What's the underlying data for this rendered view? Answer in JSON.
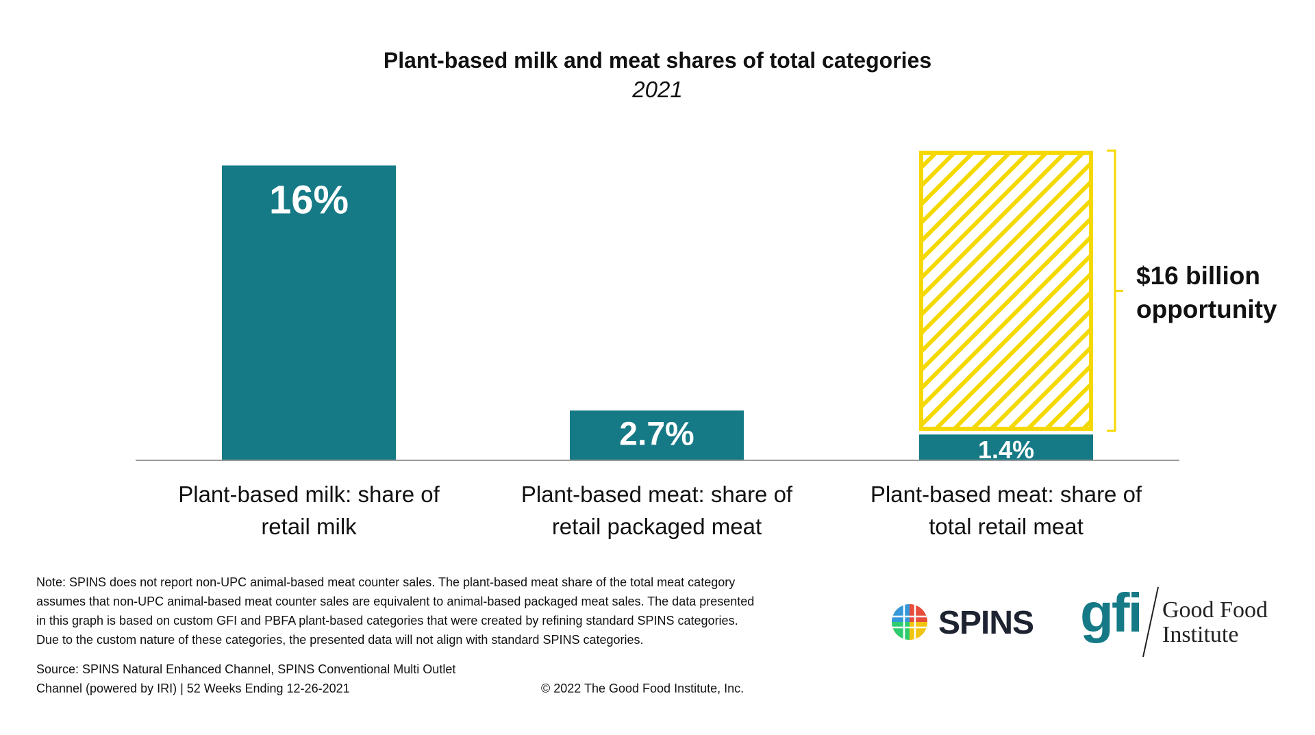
{
  "chart_data": {
    "type": "bar",
    "title": "Plant-based milk and meat shares of total categories",
    "subtitle": "2021",
    "categories": [
      "Plant-based milk: share of retail milk",
      "Plant-based meat: share of retail packaged meat",
      "Plant-based meat: share of total retail meat"
    ],
    "category_lines": [
      [
        "Plant-based milk: share of",
        "retail milk"
      ],
      [
        "Plant-based meat: share of",
        "retail packaged meat"
      ],
      [
        "Plant-based meat: share of",
        "total retail meat"
      ]
    ],
    "values": [
      16,
      2.7,
      1.4
    ],
    "value_labels": [
      "16%",
      "2.7%",
      "1.4%"
    ],
    "unit": "%",
    "ylim": [
      0,
      16.8
    ],
    "grid": false,
    "opportunity": {
      "category_index": 2,
      "from": 1.6,
      "to": 16.8,
      "label_lines": [
        "$16 billion",
        "opportunity"
      ]
    },
    "colors": {
      "bar": "#157a86",
      "opportunity": "#f5d800",
      "axis": "#9a9a9a"
    }
  },
  "footer": {
    "note_lines": [
      "Note: SPINS does not report non-UPC animal-based meat counter sales. The plant-based meat share of the total meat category",
      "assumes that non-UPC animal-based meat counter sales are equivalent to animal-based packaged meat sales. The data presented",
      "in this graph is based on custom GFI and PBFA plant-based categories that were created by refining standard SPINS categories.",
      "Due to the custom nature of these categories, the presented data will not align with standard SPINS categories."
    ],
    "source_lines": [
      "Source: SPINS Natural Enhanced Channel, SPINS Conventional Multi Outlet",
      "Channel (powered by IRI) | 52 Weeks Ending 12-26-2021"
    ],
    "copyright": "© 2022 The Good Food Institute, Inc."
  },
  "logos": {
    "spins": "SPINS",
    "gfi_mark": "gfi",
    "gfi_name_lines": [
      "Good Food",
      "Institute"
    ]
  }
}
